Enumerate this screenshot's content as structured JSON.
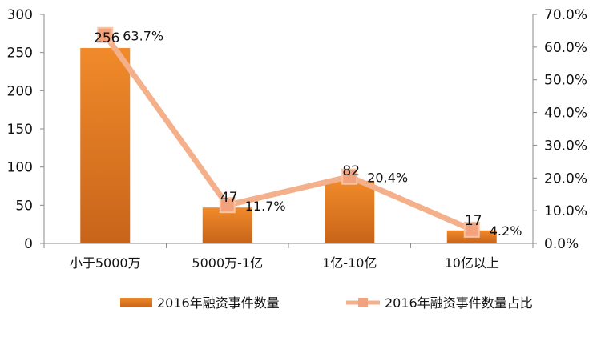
{
  "chart_data": {
    "type": "bar+line",
    "categories": [
      "小于5000万",
      "5000万-1亿",
      "1亿-10亿",
      "10亿以上"
    ],
    "series": [
      {
        "name": "2016年融资事件数量",
        "kind": "bar",
        "axis": "left",
        "values": [
          256,
          47,
          82,
          17
        ],
        "value_labels": [
          "256",
          "47",
          "82",
          "17"
        ],
        "color": "#E87D22"
      },
      {
        "name": "2016年融资事件数量占比",
        "kind": "line",
        "axis": "right",
        "values": [
          0.637,
          0.117,
          0.204,
          0.042
        ],
        "value_labels": [
          "63.7%",
          "11.7%",
          "20.4%",
          "4.2%"
        ],
        "color": "#F4B08A"
      }
    ],
    "y_left": {
      "ylim": [
        0,
        300
      ],
      "ticks": [
        0,
        50,
        100,
        150,
        200,
        250,
        300
      ],
      "tick_labels": [
        "0",
        "50",
        "100",
        "150",
        "200",
        "250",
        "300"
      ]
    },
    "y_right": {
      "ylim": [
        0,
        0.7
      ],
      "ticks": [
        0,
        0.1,
        0.2,
        0.3,
        0.4,
        0.5,
        0.6,
        0.7
      ],
      "tick_labels": [
        "0.0%",
        "10.0%",
        "20.0%",
        "30.0%",
        "40.0%",
        "50.0%",
        "60.0%",
        "70.0%"
      ]
    },
    "title": "",
    "xlabel": "",
    "grid": false,
    "legend_position": "bottom"
  }
}
